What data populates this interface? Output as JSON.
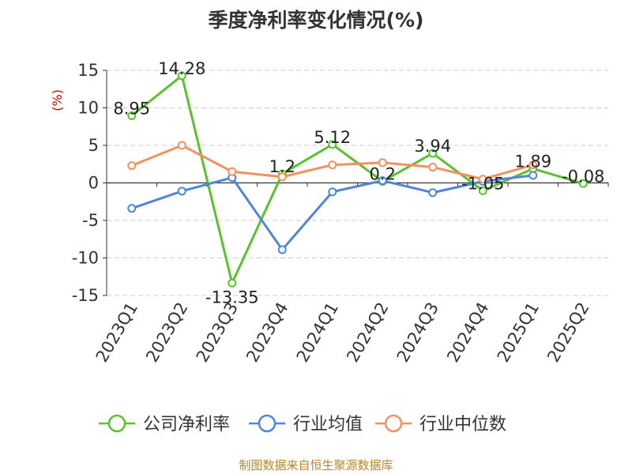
{
  "title": "季度净利率变化情况(%)",
  "source": "制图数据来自恒生聚源数据库",
  "chart_data": {
    "type": "line",
    "title": "季度净利率变化情况(%)",
    "ylabel": "(%)",
    "ylim": [
      -15,
      15
    ],
    "yticks": [
      "15",
      "10",
      "5",
      "0",
      "-5",
      "-10",
      "-15"
    ],
    "ytick_values": [
      15,
      10,
      5,
      0,
      -5,
      -10,
      -15
    ],
    "grid": true,
    "legend_position": "bottom",
    "categories": [
      "2023Q1",
      "2023Q2",
      "2023Q3",
      "2023Q4",
      "2024Q1",
      "2024Q2",
      "2024Q3",
      "2024Q4",
      "2025Q1",
      "2025Q2"
    ],
    "series": [
      {
        "name": "公司净利率",
        "color": "#5ac22e",
        "values": [
          8.95,
          14.28,
          -13.35,
          1.2,
          5.12,
          0.2,
          3.94,
          -1.05,
          1.89,
          -0.08
        ],
        "labels": [
          "8.95",
          "14.28",
          "-13.35",
          "1.2",
          "5.12",
          "0.2",
          "3.94",
          "-1.05",
          "1.89",
          "-0.08"
        ]
      },
      {
        "name": "行业均值",
        "color": "#4f86dc",
        "values": [
          -3.4,
          -1.1,
          0.7,
          -8.9,
          -1.2,
          0.3,
          -1.3,
          0.2,
          1.0,
          null
        ]
      },
      {
        "name": "行业中位数",
        "color": "#f5915f",
        "values": [
          2.3,
          5.0,
          1.5,
          0.8,
          2.4,
          2.7,
          2.1,
          0.5,
          2.4,
          null
        ]
      }
    ]
  },
  "colors": {
    "axis_label": "#333333",
    "ylabel": "#cc0000",
    "grid": "#cccccc",
    "source": "#b8862d"
  }
}
